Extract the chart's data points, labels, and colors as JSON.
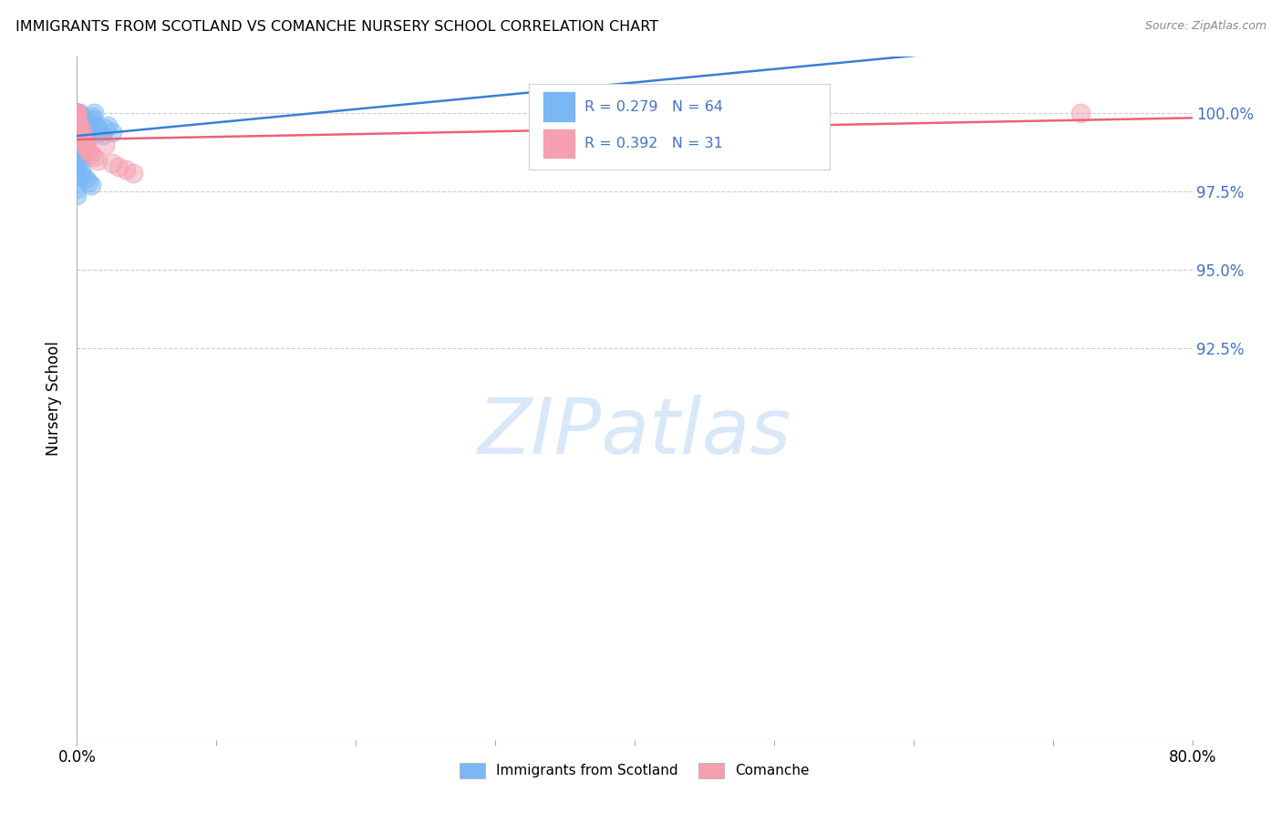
{
  "title": "IMMIGRANTS FROM SCOTLAND VS COMANCHE NURSERY SCHOOL CORRELATION CHART",
  "source": "Source: ZipAtlas.com",
  "ylabel": "Nursery School",
  "legend_label1": "Immigrants from Scotland",
  "legend_label2": "Comanche",
  "r1": 0.279,
  "n1": 64,
  "r2": 0.392,
  "n2": 31,
  "color1": "#7ab8f5",
  "color2": "#f4a0b0",
  "trendline1_color": "#3a7fd5",
  "trendline2_color": "#e8637a",
  "watermark_text": "ZIPatlas",
  "watermark_color": "#d8e8f8",
  "xlim": [
    0.0,
    80.0
  ],
  "ylim": [
    80.0,
    101.8
  ],
  "y_ticks": [
    92.5,
    95.0,
    97.5,
    100.0
  ],
  "x_ticks": [
    0,
    10,
    20,
    30,
    40,
    50,
    60,
    70,
    80
  ],
  "blue_scatter_x": [
    0.0,
    0.0,
    0.0,
    0.0,
    0.0,
    0.0,
    0.0,
    0.0,
    0.0,
    0.0,
    0.0,
    0.0,
    0.0,
    0.0,
    0.0,
    0.0,
    0.0,
    0.0,
    0.0,
    0.0,
    0.3,
    0.3,
    0.4,
    0.4,
    0.5,
    0.5,
    0.6,
    0.7,
    0.8,
    0.9,
    1.0,
    1.1,
    1.2,
    1.3,
    1.5,
    1.6,
    1.8,
    2.0,
    2.2,
    2.5,
    0.1,
    0.1,
    0.15,
    0.2,
    0.2,
    0.25,
    0.3,
    0.35,
    0.4,
    0.5,
    0.0,
    0.0,
    0.0,
    0.1,
    0.15,
    0.2,
    0.3,
    0.4,
    0.6,
    0.8,
    1.0,
    0.0,
    0.0,
    0.5
  ],
  "blue_scatter_y": [
    100.0,
    100.0,
    100.0,
    100.0,
    100.0,
    100.0,
    100.0,
    100.0,
    100.0,
    100.0,
    99.8,
    99.7,
    99.6,
    99.5,
    99.4,
    99.3,
    99.2,
    99.1,
    99.0,
    98.9,
    99.9,
    99.5,
    99.7,
    99.3,
    99.6,
    99.2,
    99.4,
    99.5,
    99.6,
    99.7,
    99.8,
    99.9,
    100.0,
    99.6,
    99.5,
    99.4,
    99.3,
    99.5,
    99.6,
    99.4,
    99.9,
    99.7,
    99.8,
    99.6,
    100.0,
    99.8,
    99.5,
    99.3,
    99.4,
    99.2,
    98.5,
    98.3,
    98.1,
    98.7,
    98.6,
    98.4,
    98.2,
    98.0,
    97.9,
    97.8,
    97.7,
    97.6,
    97.4,
    98.8
  ],
  "pink_scatter_x": [
    0.0,
    0.0,
    0.0,
    0.0,
    0.0,
    0.0,
    0.0,
    0.0,
    0.3,
    0.4,
    0.5,
    0.6,
    0.7,
    0.8,
    1.0,
    1.2,
    1.5,
    2.0,
    2.5,
    3.0,
    3.5,
    4.0,
    0.1,
    0.15,
    0.2,
    0.25,
    0.3,
    0.5,
    0.6,
    0.7,
    72.0
  ],
  "pink_scatter_y": [
    100.0,
    100.0,
    100.0,
    100.0,
    99.8,
    99.6,
    99.4,
    99.2,
    99.5,
    99.3,
    99.1,
    99.0,
    98.9,
    98.8,
    98.7,
    98.6,
    98.5,
    99.0,
    98.4,
    98.3,
    98.2,
    98.1,
    99.7,
    99.6,
    99.5,
    99.4,
    99.3,
    99.1,
    99.0,
    98.9,
    100.0
  ]
}
